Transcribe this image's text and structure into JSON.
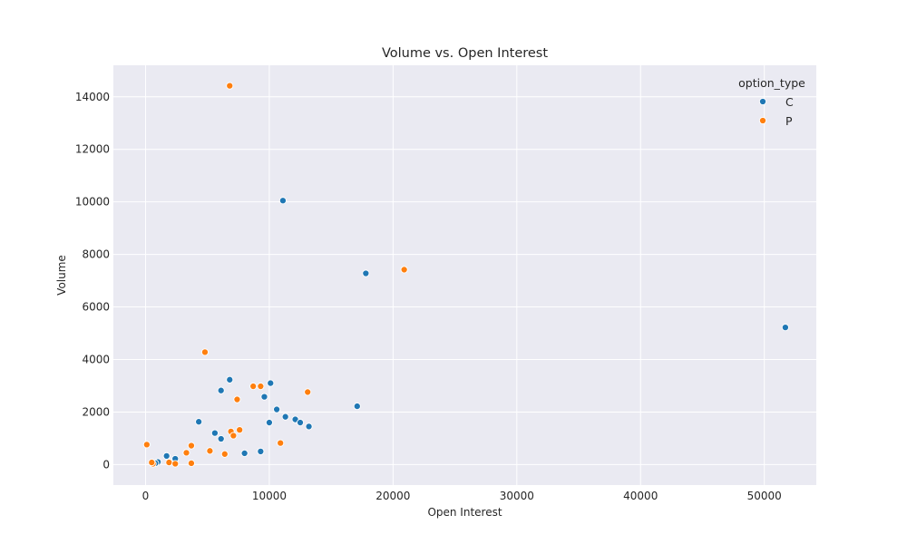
{
  "chart_data": {
    "type": "scatter",
    "title": "Volume vs. Open Interest",
    "xlabel": "Open Interest",
    "ylabel": "Volume",
    "xlim": [
      -2600,
      54200
    ],
    "ylim": [
      -780,
      15200
    ],
    "xticks": [
      0,
      10000,
      20000,
      30000,
      40000,
      50000
    ],
    "yticks": [
      0,
      2000,
      4000,
      6000,
      8000,
      10000,
      12000,
      14000
    ],
    "grid": true,
    "legend": {
      "title": "option_type",
      "placement": "top-right"
    },
    "series": [
      {
        "name": "C",
        "color": "#1f77b4",
        "points": [
          [
            11100,
            10050
          ],
          [
            17800,
            7280
          ],
          [
            51700,
            5220
          ],
          [
            6800,
            3230
          ],
          [
            10100,
            3100
          ],
          [
            6100,
            2820
          ],
          [
            9600,
            2580
          ],
          [
            17100,
            2220
          ],
          [
            10600,
            2100
          ],
          [
            11300,
            1820
          ],
          [
            12100,
            1720
          ],
          [
            12500,
            1600
          ],
          [
            4300,
            1630
          ],
          [
            10000,
            1600
          ],
          [
            13200,
            1450
          ],
          [
            5600,
            1200
          ],
          [
            6100,
            980
          ],
          [
            9300,
            500
          ],
          [
            8000,
            430
          ],
          [
            1700,
            330
          ],
          [
            2400,
            220
          ],
          [
            1000,
            100
          ],
          [
            800,
            50
          ]
        ]
      },
      {
        "name": "P",
        "color": "#ff7f0e",
        "points": [
          [
            6800,
            14420
          ],
          [
            20900,
            7420
          ],
          [
            4800,
            4280
          ],
          [
            8700,
            2980
          ],
          [
            9300,
            2980
          ],
          [
            13100,
            2760
          ],
          [
            7400,
            2480
          ],
          [
            7600,
            1320
          ],
          [
            6900,
            1260
          ],
          [
            7100,
            1100
          ],
          [
            10900,
            820
          ],
          [
            100,
            760
          ],
          [
            3700,
            720
          ],
          [
            5200,
            520
          ],
          [
            3300,
            450
          ],
          [
            6400,
            400
          ],
          [
            1900,
            80
          ],
          [
            2400,
            30
          ],
          [
            600,
            30
          ],
          [
            3700,
            50
          ],
          [
            500,
            80
          ]
        ]
      }
    ]
  }
}
